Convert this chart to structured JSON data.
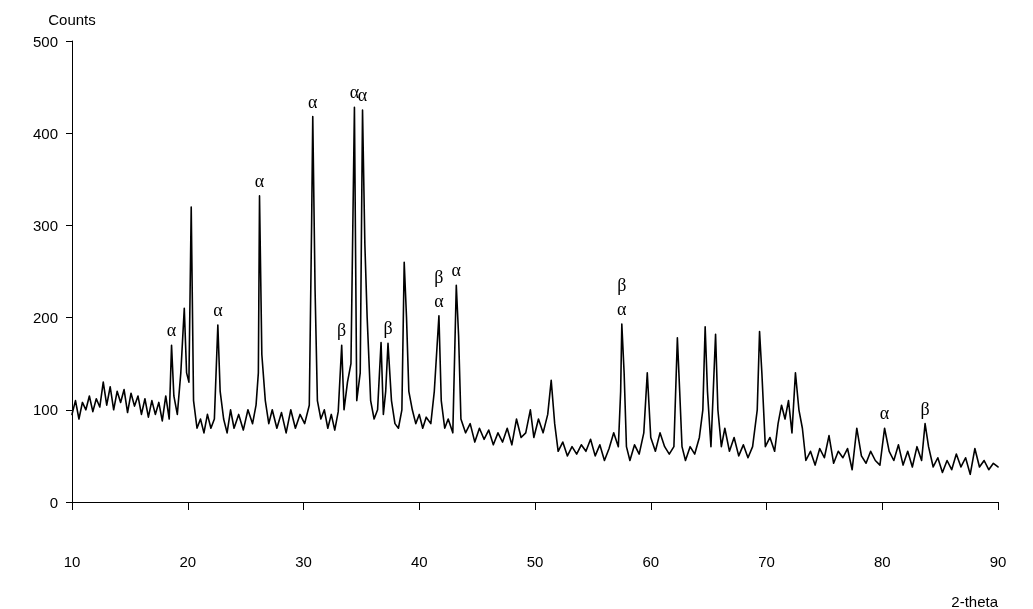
{
  "chart_data": {
    "type": "line",
    "xlabel": "2-theta",
    "ylabel": "Counts",
    "xlim": [
      10,
      90
    ],
    "xticks": [
      10,
      20,
      30,
      40,
      50,
      60,
      70,
      80,
      90
    ],
    "ylim": [
      0,
      500
    ],
    "yticks": [
      0,
      100,
      200,
      300,
      400,
      500
    ],
    "grid": false,
    "marker": "none",
    "line_style": "solid",
    "series": [
      {
        "color": "#000000",
        "x": [
          10,
          10.3,
          10.6,
          10.9,
          11.2,
          11.5,
          11.8,
          12.1,
          12.4,
          12.7,
          13.0,
          13.3,
          13.6,
          13.9,
          14.2,
          14.5,
          14.8,
          15.1,
          15.4,
          15.7,
          16.0,
          16.3,
          16.6,
          16.9,
          17.2,
          17.5,
          17.8,
          18.1,
          18.4,
          18.6,
          18.8,
          19.1,
          19.4,
          19.7,
          19.9,
          20.1,
          20.3,
          20.5,
          20.8,
          21.1,
          21.4,
          21.7,
          22.0,
          22.3,
          22.6,
          22.8,
          23.1,
          23.4,
          23.7,
          24.0,
          24.4,
          24.8,
          25.2,
          25.6,
          25.9,
          26.1,
          26.2,
          26.4,
          26.7,
          27.0,
          27.3,
          27.7,
          28.1,
          28.5,
          28.9,
          29.3,
          29.7,
          30.1,
          30.5,
          30.7,
          30.8,
          31.0,
          31.2,
          31.5,
          31.8,
          32.1,
          32.4,
          32.7,
          33.0,
          33.3,
          33.5,
          33.8,
          34.1,
          34.4,
          34.6,
          34.9,
          35.1,
          35.3,
          35.5,
          35.8,
          36.1,
          36.4,
          36.7,
          36.9,
          37.1,
          37.3,
          37.6,
          37.9,
          38.2,
          38.5,
          38.7,
          38.9,
          39.1,
          39.4,
          39.7,
          40.0,
          40.3,
          40.6,
          41.0,
          41.3,
          41.7,
          41.9,
          42.2,
          42.5,
          42.9,
          43.2,
          43.4,
          43.6,
          44.0,
          44.4,
          44.8,
          45.2,
          45.6,
          46.0,
          46.4,
          46.8,
          47.2,
          47.6,
          48.0,
          48.4,
          48.8,
          49.2,
          49.6,
          49.9,
          50.3,
          50.7,
          51.1,
          51.4,
          51.7,
          52.0,
          52.4,
          52.8,
          53.2,
          53.6,
          54.0,
          54.4,
          54.8,
          55.2,
          55.6,
          56.0,
          56.4,
          56.8,
          57.2,
          57.4,
          57.5,
          57.7,
          57.9,
          58.2,
          58.6,
          59.0,
          59.4,
          59.7,
          60.0,
          60.4,
          60.8,
          61.2,
          61.6,
          62.0,
          62.3,
          62.5,
          62.7,
          63.0,
          63.4,
          63.8,
          64.2,
          64.5,
          64.7,
          64.9,
          65.2,
          65.4,
          65.6,
          65.8,
          66.1,
          66.4,
          66.8,
          67.2,
          67.6,
          68.0,
          68.4,
          68.8,
          69.2,
          69.4,
          69.6,
          69.9,
          70.3,
          70.7,
          71.0,
          71.3,
          71.6,
          71.9,
          72.2,
          72.5,
          72.8,
          73.1,
          73.4,
          73.8,
          74.2,
          74.6,
          75.0,
          75.4,
          75.8,
          76.2,
          76.6,
          77.0,
          77.4,
          77.8,
          78.2,
          78.6,
          79.0,
          79.4,
          79.8,
          80.2,
          80.6,
          81.0,
          81.4,
          81.8,
          82.2,
          82.6,
          83.0,
          83.4,
          83.7,
          84.0,
          84.4,
          84.8,
          85.2,
          85.6,
          86.0,
          86.4,
          86.8,
          87.2,
          87.6,
          88.0,
          88.4,
          88.8,
          89.2,
          89.6,
          90.0
        ],
        "values": [
          95,
          110,
          90,
          108,
          100,
          115,
          98,
          112,
          103,
          130,
          105,
          125,
          100,
          120,
          108,
          122,
          97,
          118,
          104,
          115,
          95,
          112,
          92,
          110,
          95,
          108,
          88,
          115,
          90,
          170,
          115,
          95,
          140,
          210,
          140,
          130,
          320,
          110,
          80,
          90,
          75,
          95,
          80,
          90,
          192,
          120,
          90,
          75,
          100,
          80,
          95,
          78,
          100,
          85,
          105,
          140,
          332,
          160,
          110,
          85,
          100,
          80,
          97,
          75,
          100,
          80,
          95,
          85,
          105,
          300,
          418,
          230,
          110,
          90,
          100,
          80,
          95,
          78,
          98,
          170,
          100,
          130,
          150,
          428,
          110,
          140,
          425,
          280,
          200,
          110,
          90,
          100,
          173,
          95,
          120,
          172,
          110,
          85,
          80,
          100,
          260,
          200,
          120,
          100,
          85,
          95,
          80,
          92,
          85,
          120,
          202,
          110,
          80,
          90,
          75,
          235,
          180,
          90,
          75,
          85,
          65,
          80,
          68,
          78,
          62,
          75,
          65,
          80,
          62,
          90,
          70,
          75,
          100,
          70,
          90,
          75,
          95,
          132,
          85,
          55,
          65,
          50,
          60,
          52,
          62,
          55,
          68,
          50,
          62,
          45,
          58,
          75,
          60,
          120,
          193,
          140,
          60,
          45,
          62,
          52,
          75,
          140,
          70,
          55,
          75,
          60,
          52,
          60,
          178,
          120,
          60,
          45,
          60,
          52,
          70,
          100,
          190,
          120,
          60,
          120,
          182,
          100,
          60,
          80,
          55,
          70,
          50,
          62,
          48,
          60,
          100,
          185,
          140,
          60,
          70,
          55,
          85,
          105,
          90,
          110,
          75,
          140,
          100,
          80,
          45,
          55,
          40,
          58,
          48,
          72,
          42,
          55,
          48,
          58,
          35,
          80,
          50,
          42,
          55,
          45,
          40,
          80,
          55,
          45,
          62,
          40,
          55,
          38,
          60,
          45,
          85,
          60,
          38,
          48,
          32,
          45,
          35,
          52,
          38,
          48,
          30,
          58,
          38,
          45,
          35,
          42,
          38
        ]
      }
    ],
    "annotations": [
      {
        "text": "α",
        "x": 18.6,
        "y": 170
      },
      {
        "text": "α",
        "x": 22.6,
        "y": 192
      },
      {
        "text": "α",
        "x": 26.2,
        "y": 332
      },
      {
        "text": "α",
        "x": 30.8,
        "y": 418
      },
      {
        "text": "α",
        "x": 34.4,
        "y": 428
      },
      {
        "text": "α",
        "x": 35.1,
        "y": 425
      },
      {
        "text": "β",
        "x": 33.3,
        "y": 170
      },
      {
        "text": "β",
        "x": 37.3,
        "y": 172
      },
      {
        "text": "α",
        "x": 41.7,
        "y": 202
      },
      {
        "text": "β",
        "x": 41.7,
        "y": 202
      },
      {
        "text": "α",
        "x": 43.2,
        "y": 235
      },
      {
        "text": "α",
        "x": 57.5,
        "y": 193
      },
      {
        "text": "β",
        "x": 57.5,
        "y": 193
      },
      {
        "text": "α",
        "x": 80.2,
        "y": 80
      },
      {
        "text": "β",
        "x": 83.7,
        "y": 85
      }
    ]
  }
}
